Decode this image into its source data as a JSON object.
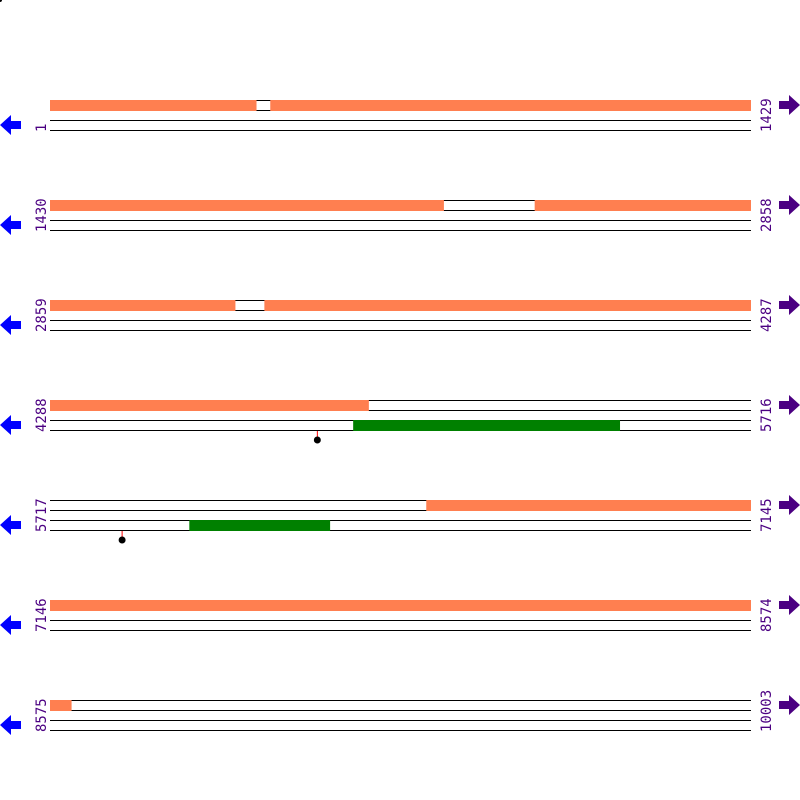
{
  "colors": {
    "orange": "#FF7F50",
    "green": "#008000",
    "label": "#4B0082",
    "left_arrow": "#0000FF",
    "right_arrow": "#4B0082",
    "marker_stem": "#FF0000",
    "marker": "#000000",
    "line": "#000000"
  },
  "icons": {
    "left": "arrow-left-icon",
    "right": "arrow-right-icon"
  },
  "rows": [
    {
      "start": "1",
      "end": "1429",
      "s": 1,
      "e": 1429,
      "orange": [
        [
          1,
          421
        ],
        [
          450,
          1429
        ]
      ],
      "green": [],
      "markers": []
    },
    {
      "start": "1430",
      "end": "2858",
      "s": 1430,
      "e": 2858,
      "orange": [
        [
          1430,
          2232
        ],
        [
          2418,
          2858
        ]
      ],
      "green": [],
      "markers": []
    },
    {
      "start": "2859",
      "end": "4287",
      "s": 2859,
      "e": 4287,
      "orange": [
        [
          2859,
          3236
        ],
        [
          3296,
          4287
        ]
      ],
      "green": [],
      "markers": []
    },
    {
      "start": "4288",
      "end": "5716",
      "s": 4288,
      "e": 5716,
      "orange": [
        [
          4288,
          4937
        ]
      ],
      "green": [
        [
          4906,
          5449
        ]
      ],
      "markers": [
        4833
      ]
    },
    {
      "start": "5717",
      "end": "7145",
      "s": 5717,
      "e": 7145,
      "orange": [
        [
          6484,
          7145
        ]
      ],
      "green": [
        [
          6001,
          6287
        ]
      ],
      "markers": [
        5864
      ]
    },
    {
      "start": "7146",
      "end": "8574",
      "s": 7146,
      "e": 8574,
      "orange": [
        [
          7146,
          8574
        ]
      ],
      "green": [],
      "markers": []
    },
    {
      "start": "8575",
      "end": "10003",
      "s": 8575,
      "e": 10003,
      "orange": [
        [
          8575,
          8618
        ]
      ],
      "green": [],
      "markers": []
    }
  ]
}
